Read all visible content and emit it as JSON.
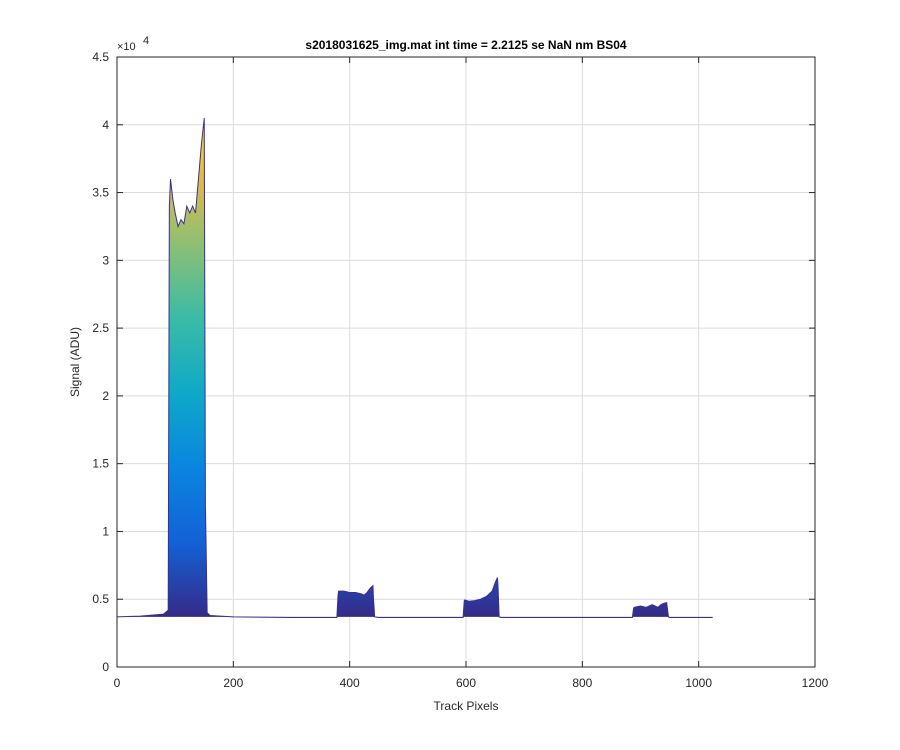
{
  "chart_data": {
    "type": "area",
    "title": "s2018031625_img.mat int time = 2.2125 se  NaN nm BS04",
    "xlabel": "Track Pixels",
    "ylabel": "Signal (ADU)",
    "xlim": [
      0,
      1200
    ],
    "ylim": [
      0,
      45000
    ],
    "x_ticks": [
      0,
      200,
      400,
      600,
      800,
      1000,
      1200
    ],
    "x_tick_labels": [
      "0",
      "200",
      "400",
      "600",
      "800",
      "1000",
      "1200"
    ],
    "y_ticks": [
      0,
      5000,
      10000,
      15000,
      20000,
      25000,
      30000,
      35000,
      40000,
      45000
    ],
    "y_tick_labels": [
      "0",
      "0.5",
      "1",
      "1.5",
      "2",
      "2.5",
      "3",
      "3.5",
      "4",
      "4.5"
    ],
    "y_exponent_base": "×10",
    "y_exponent_power": "4",
    "grid": true,
    "baseline": 3700,
    "series": [
      {
        "x": [
          0,
          40,
          80,
          88,
          90,
          92,
          96,
          100,
          105,
          110,
          115,
          120,
          125,
          130,
          135,
          140,
          145,
          150,
          152,
          155,
          160,
          200,
          300,
          378,
          380,
          381,
          390,
          400,
          410,
          420,
          425,
          430,
          435,
          440,
          441,
          443,
          450,
          500,
          595,
          597,
          598,
          605,
          615,
          625,
          635,
          645,
          650,
          654,
          655,
          657,
          660,
          700,
          800,
          886,
          888,
          889,
          900,
          910,
          920,
          930,
          935,
          940,
          945,
          948,
          950,
          1000,
          1024
        ],
        "y": [
          3700,
          3750,
          3900,
          4200,
          34000,
          36000,
          34500,
          33500,
          32500,
          33000,
          32700,
          34000,
          33500,
          34000,
          33500,
          36000,
          38500,
          40500,
          12000,
          4000,
          3800,
          3700,
          3650,
          3650,
          5300,
          5600,
          5600,
          5500,
          5500,
          5400,
          5300,
          5500,
          5800,
          6000,
          5000,
          3700,
          3650,
          3650,
          3650,
          4900,
          4950,
          4850,
          4900,
          5000,
          5200,
          5600,
          6200,
          6600,
          6000,
          3700,
          3650,
          3650,
          3650,
          3650,
          4300,
          4400,
          4500,
          4400,
          4600,
          4400,
          4600,
          4700,
          4750,
          3700,
          3650,
          3650,
          3650
        ]
      }
    ]
  }
}
